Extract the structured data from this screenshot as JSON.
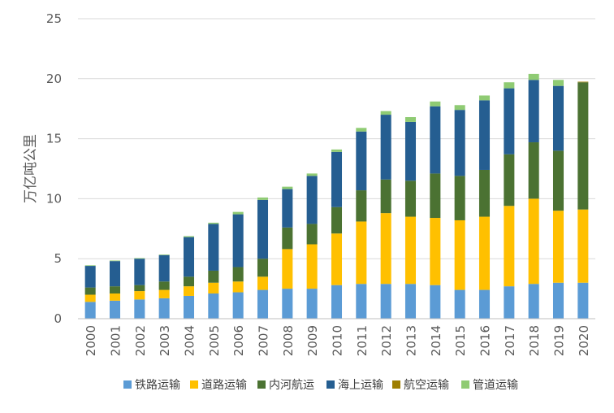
{
  "chart_data": {
    "type": "bar",
    "stacked": true,
    "ylabel": "万亿吨公里",
    "ylim": [
      0,
      25
    ],
    "yticks": [
      0,
      5,
      10,
      15,
      20,
      25
    ],
    "grid": true,
    "legend_position": "bottom",
    "categories": [
      "2000",
      "2001",
      "2002",
      "2003",
      "2004",
      "2005",
      "2006",
      "2007",
      "2008",
      "2009",
      "2010",
      "2011",
      "2012",
      "2013",
      "2014",
      "2015",
      "2016",
      "2017",
      "2018",
      "2019",
      "2020"
    ],
    "series": [
      {
        "name": "铁路运输",
        "color": "#5B9BD5",
        "values": [
          1.4,
          1.5,
          1.6,
          1.7,
          1.9,
          2.1,
          2.2,
          2.4,
          2.5,
          2.5,
          2.8,
          2.9,
          2.9,
          2.9,
          2.8,
          2.4,
          2.4,
          2.7,
          2.9,
          3.0,
          3.0
        ]
      },
      {
        "name": "道路运输",
        "color": "#FFC000",
        "values": [
          0.6,
          0.6,
          0.7,
          0.7,
          0.8,
          0.9,
          0.9,
          1.1,
          3.3,
          3.7,
          4.3,
          5.2,
          5.9,
          5.6,
          5.6,
          5.8,
          6.1,
          6.7,
          7.1,
          6.0,
          6.1
        ]
      },
      {
        "name": "内河航运",
        "color": "#4B7232",
        "values": [
          0.6,
          0.6,
          0.5,
          0.7,
          0.8,
          1.0,
          1.2,
          1.5,
          1.8,
          1.7,
          2.2,
          2.6,
          2.8,
          3.0,
          3.7,
          3.7,
          3.9,
          4.3,
          4.7,
          5.0,
          10.6
        ]
      },
      {
        "name": "海上运输",
        "color": "#255E91",
        "values": [
          1.8,
          2.1,
          2.2,
          2.2,
          3.3,
          3.9,
          4.4,
          4.9,
          3.2,
          4.0,
          4.6,
          4.9,
          5.4,
          4.9,
          5.6,
          5.5,
          5.8,
          5.5,
          5.2,
          5.4,
          0.0
        ]
      },
      {
        "name": "航空运输",
        "color": "#9E7E00",
        "values": [
          0.0,
          0.0,
          0.0,
          0.0,
          0.0,
          0.0,
          0.0,
          0.0,
          0.0,
          0.0,
          0.0,
          0.0,
          0.0,
          0.0,
          0.0,
          0.0,
          0.0,
          0.0,
          0.0,
          0.0,
          0.05
        ]
      },
      {
        "name": "管道运输",
        "color": "#8FCB73",
        "values": [
          0.05,
          0.05,
          0.05,
          0.05,
          0.08,
          0.1,
          0.2,
          0.2,
          0.2,
          0.2,
          0.2,
          0.3,
          0.3,
          0.4,
          0.4,
          0.4,
          0.4,
          0.5,
          0.5,
          0.5,
          0.0
        ]
      }
    ]
  }
}
